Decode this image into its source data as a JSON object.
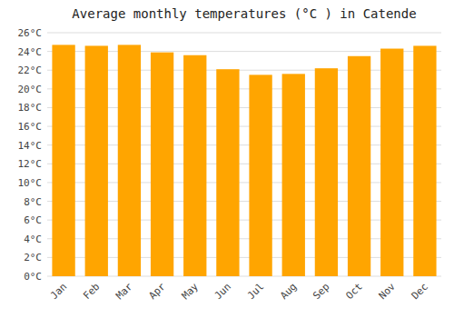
{
  "chart_data": {
    "type": "bar",
    "title": "Average monthly temperatures (°C ) in Catende",
    "categories": [
      "Jan",
      "Feb",
      "Mar",
      "Apr",
      "May",
      "Jun",
      "Jul",
      "Aug",
      "Sep",
      "Oct",
      "Nov",
      "Dec"
    ],
    "values": [
      24.7,
      24.6,
      24.7,
      23.9,
      23.6,
      22.1,
      21.5,
      21.6,
      22.2,
      23.5,
      24.3,
      24.6
    ],
    "color": "#FFA500",
    "ylim": [
      0,
      26
    ],
    "yticks": [
      {
        "value": 0,
        "label": "0°C"
      },
      {
        "value": 2,
        "label": "2°C"
      },
      {
        "value": 4,
        "label": "4°C"
      },
      {
        "value": 6,
        "label": "6°C"
      },
      {
        "value": 8,
        "label": "8°C"
      },
      {
        "value": 10,
        "label": "10°C"
      },
      {
        "value": 12,
        "label": "12°C"
      },
      {
        "value": 14,
        "label": "14°C"
      },
      {
        "value": 16,
        "label": "16°C"
      },
      {
        "value": 18,
        "label": "18°C"
      },
      {
        "value": 20,
        "label": "20°C"
      },
      {
        "value": 22,
        "label": "22°C"
      },
      {
        "value": 24,
        "label": "24°C"
      },
      {
        "value": 26,
        "label": "26°C"
      }
    ],
    "grid": true
  }
}
